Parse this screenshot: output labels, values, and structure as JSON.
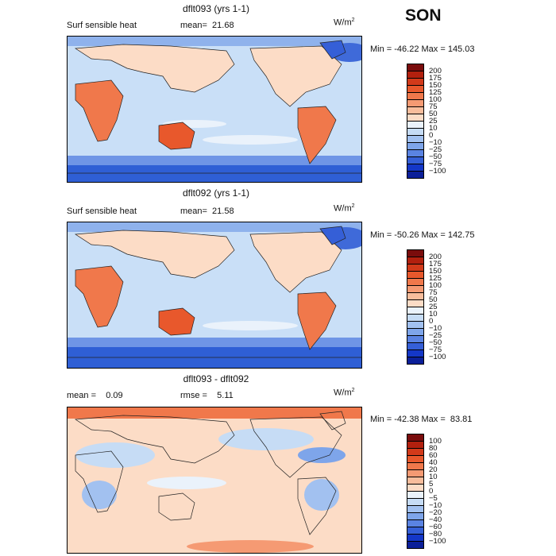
{
  "season": "SON",
  "panels": [
    {
      "title": "dflt093 (yrs 1-1)",
      "left_text": "Surf sensible heat",
      "right_text": "mean=  21.68",
      "unit": "W/m",
      "unit_sup": "2",
      "minmax": "Min = -46.22 Max = 145.03",
      "colorbar": {
        "labels": [
          "200",
          "175",
          "150",
          "125",
          "100",
          "75",
          "50",
          "25",
          "10",
          "0",
          "−10",
          "−25",
          "−50",
          "−75",
          "−100"
        ],
        "colors": [
          "#7a0c0c",
          "#b2200e",
          "#d23a1a",
          "#e8582c",
          "#f0784b",
          "#f59a73",
          "#f8bd9c",
          "#fcdcc6",
          "#eaf2fb",
          "#c6dcf5",
          "#a2c1f0",
          "#7ea5ea",
          "#5a83e2",
          "#355fd7",
          "#1437c8",
          "#0b1f99"
        ]
      }
    },
    {
      "title": "dflt092 (yrs 1-1)",
      "left_text": "Surf sensible heat",
      "right_text": "mean=  21.58",
      "unit": "W/m",
      "unit_sup": "2",
      "minmax": "Min = -50.26 Max = 142.75",
      "colorbar": {
        "labels": [
          "200",
          "175",
          "150",
          "125",
          "100",
          "75",
          "50",
          "25",
          "10",
          "0",
          "−10",
          "−25",
          "−50",
          "−75",
          "−100"
        ],
        "colors": [
          "#7a0c0c",
          "#b2200e",
          "#d23a1a",
          "#e8582c",
          "#f0784b",
          "#f59a73",
          "#f8bd9c",
          "#fcdcc6",
          "#eaf2fb",
          "#c6dcf5",
          "#a2c1f0",
          "#7ea5ea",
          "#5a83e2",
          "#355fd7",
          "#1437c8",
          "#0b1f99"
        ]
      }
    },
    {
      "title": "dflt093 - dflt092",
      "left_text": "mean =    0.09",
      "right_text": "rmse =    5.11",
      "unit": "W/m",
      "unit_sup": "2",
      "minmax": "Min = -42.38 Max =  83.81",
      "colorbar": {
        "labels": [
          "100",
          "80",
          "60",
          "40",
          "20",
          "10",
          "5",
          "0",
          "−5",
          "−10",
          "−20",
          "−40",
          "−60",
          "−80",
          "−100"
        ],
        "colors": [
          "#7a0c0c",
          "#b2200e",
          "#d23a1a",
          "#e8582c",
          "#f0784b",
          "#f59a73",
          "#f8bd9c",
          "#fcdcc6",
          "#eaf2fb",
          "#c6dcf5",
          "#a2c1f0",
          "#7ea5ea",
          "#5a83e2",
          "#355fd7",
          "#1437c8",
          "#0b1f99"
        ]
      }
    }
  ]
}
